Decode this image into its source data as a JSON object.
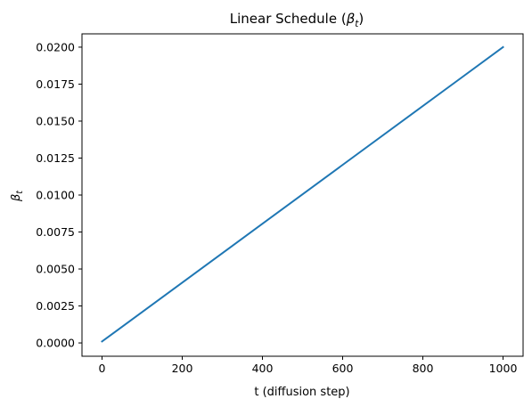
{
  "chart_data": {
    "type": "line",
    "title": "Linear Schedule (",
    "title_symbol": "β",
    "title_subscript": "t",
    "title_close": ")",
    "xlabel": "t (diffusion step)",
    "ylabel_symbol": "β",
    "ylabel_subscript": "t",
    "xlim": [
      -50,
      1050
    ],
    "ylim": [
      -0.0009,
      0.0209
    ],
    "x_ticks": [
      0,
      200,
      400,
      600,
      800,
      1000
    ],
    "x_tick_labels": [
      "0",
      "200",
      "400",
      "600",
      "800",
      "1000"
    ],
    "y_ticks": [
      0.0,
      0.0025,
      0.005,
      0.0075,
      0.01,
      0.0125,
      0.015,
      0.0175,
      0.02
    ],
    "y_tick_labels": [
      "0.0000",
      "0.0025",
      "0.0050",
      "0.0075",
      "0.0100",
      "0.0125",
      "0.0150",
      "0.0175",
      "0.0200"
    ],
    "grid": false,
    "series": [
      {
        "color": "#1f77b4",
        "x": [
          0,
          1000
        ],
        "y": [
          0.0001,
          0.02
        ]
      }
    ]
  }
}
